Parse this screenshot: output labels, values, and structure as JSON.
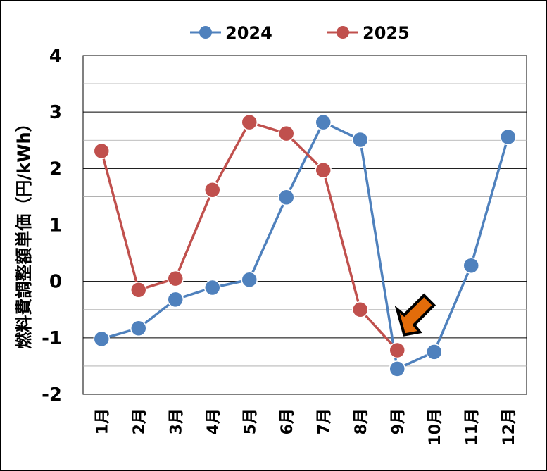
{
  "chart_data": {
    "type": "line",
    "title": "",
    "xlabel": "",
    "ylabel": "燃料費調整額単価（円/kWh）",
    "categories": [
      "1月",
      "2月",
      "3月",
      "4月",
      "5月",
      "6月",
      "7月",
      "8月",
      "9月",
      "10月",
      "11月",
      "12月"
    ],
    "ylim": [
      -2,
      4
    ],
    "yticks": [
      -2,
      -1,
      0,
      1,
      2,
      3,
      4
    ],
    "ytick_labels": [
      "-2",
      "-1",
      "0",
      "1",
      "2",
      "3",
      "4"
    ],
    "grid": true,
    "legend_position": "top",
    "series": [
      {
        "name": "2024",
        "color": "#4f81bd",
        "values": [
          -1.02,
          -0.83,
          -0.32,
          -0.11,
          0.03,
          1.49,
          2.82,
          2.51,
          -1.55,
          -1.25,
          0.28,
          2.56
        ]
      },
      {
        "name": "2025",
        "color": "#c0504d",
        "values": [
          2.31,
          -0.15,
          0.05,
          1.62,
          2.82,
          2.62,
          1.97,
          -0.5,
          -1.22,
          null,
          null,
          null
        ]
      }
    ],
    "annotation": {
      "type": "arrow",
      "color": "#e36c0a",
      "target_category": "9月",
      "target_series": "2025"
    }
  }
}
